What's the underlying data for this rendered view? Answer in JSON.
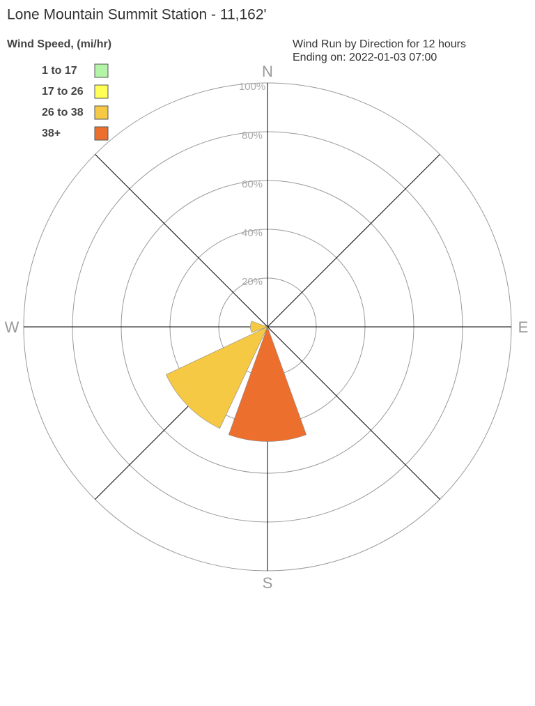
{
  "chart_data": {
    "type": "windrose",
    "title": "Lone Mountain Summit Station - 11,162'",
    "legend_title": "Wind Speed, (mi/hr)",
    "subtitle": [
      "Wind Run by Direction for 12 hours",
      "Ending on: 2022-01-03 07:00"
    ],
    "categories": [
      "N",
      null,
      "E",
      null,
      "S",
      null,
      "W",
      null
    ],
    "series": [
      {
        "name": "1 to 17",
        "color": "#b2f5a6",
        "values": [
          0,
          0,
          0,
          0,
          0,
          0,
          0,
          0
        ]
      },
      {
        "name": "17 to 26",
        "color": "#ffff55",
        "values": [
          0,
          0,
          0,
          0,
          0,
          0,
          0,
          0
        ]
      },
      {
        "name": "26 to 38",
        "color": "#f6c944",
        "values": [
          0,
          0,
          0,
          0,
          0,
          46,
          7,
          0
        ]
      },
      {
        "name": "38+",
        "color": "#ec6f2e",
        "values": [
          0,
          0,
          0,
          0,
          47,
          0,
          0,
          0
        ]
      }
    ],
    "rlim": [
      0,
      100
    ],
    "rticks": [
      {
        "value": 20,
        "label": "20%"
      },
      {
        "value": 40,
        "label": "40%"
      },
      {
        "value": 60,
        "label": "60%"
      },
      {
        "value": 80,
        "label": "80%"
      },
      {
        "value": 100,
        "label": "100%"
      }
    ]
  }
}
